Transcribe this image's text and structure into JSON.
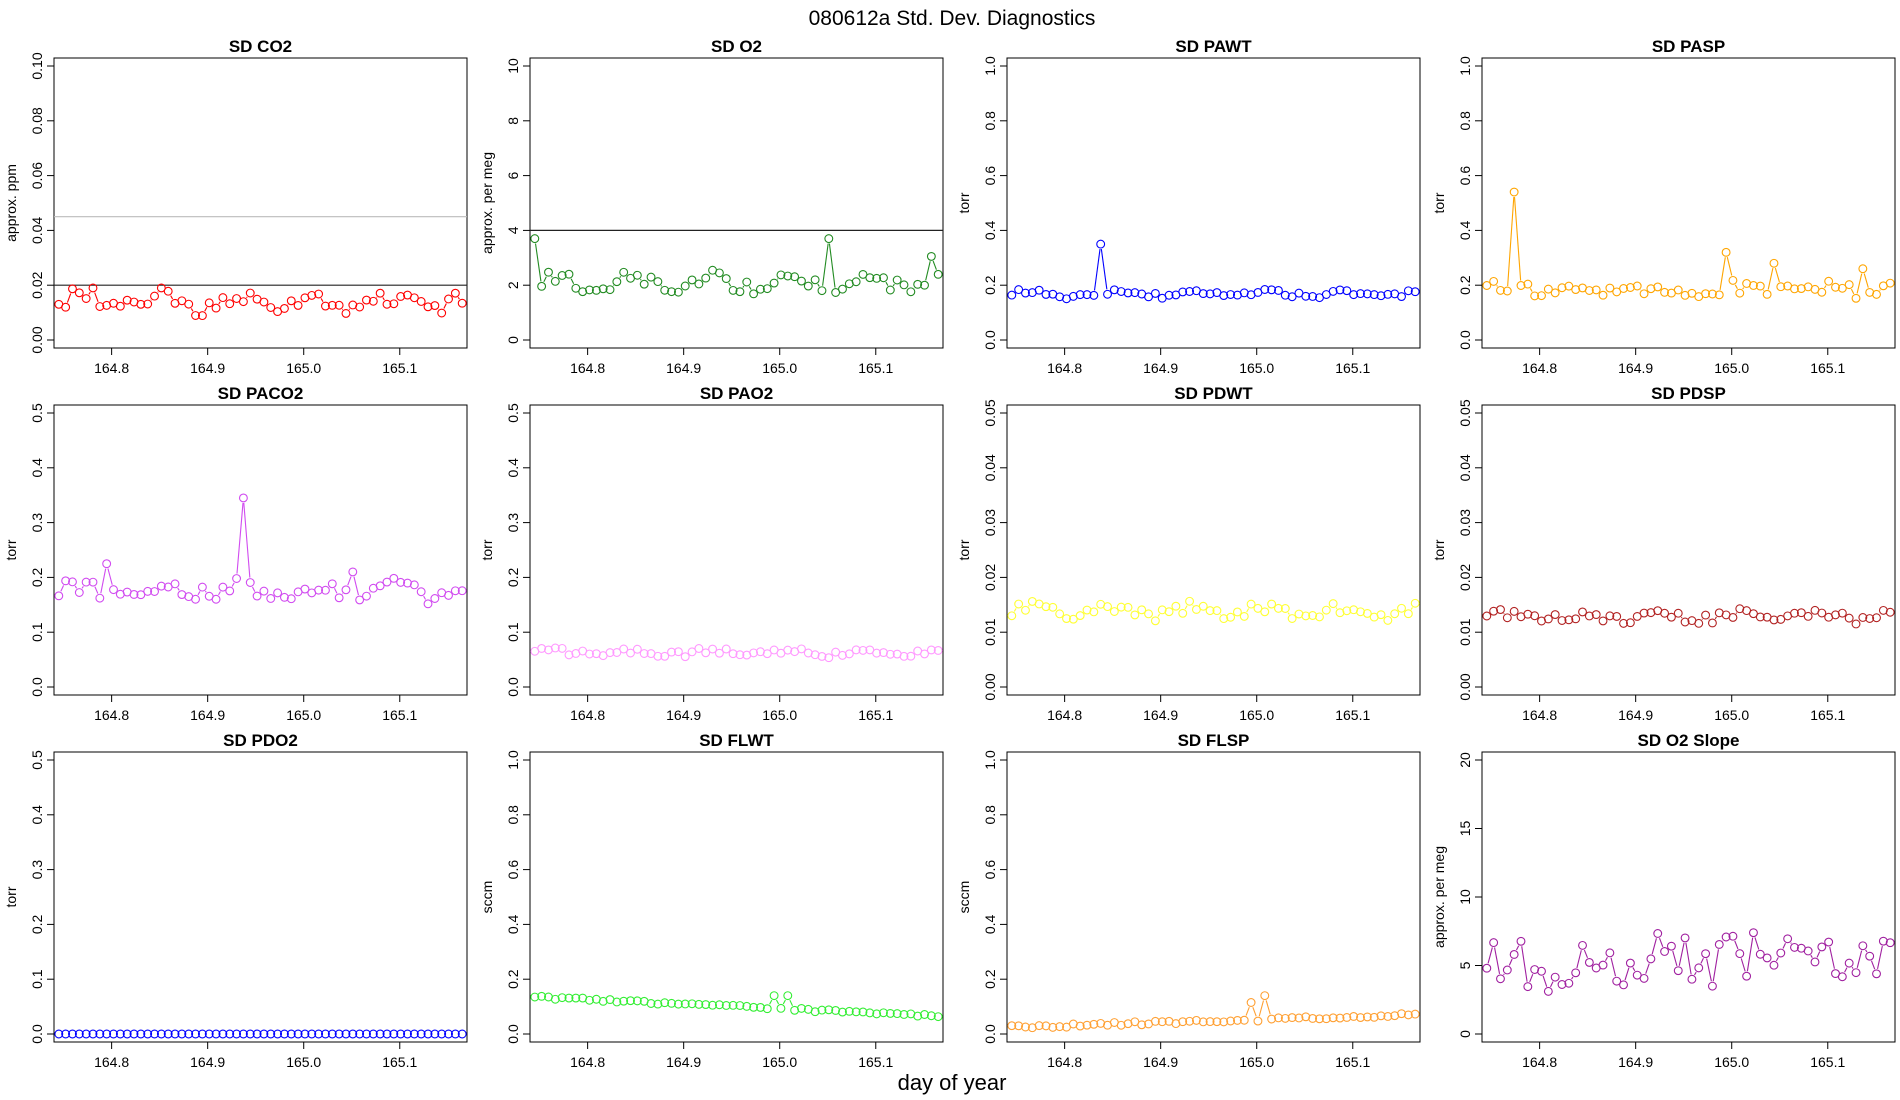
{
  "title": "080612a   Std. Dev. Diagnostics",
  "xlabel": "day of year",
  "chart_data": [
    {
      "type": "scatter",
      "title": "SD CO2",
      "ylabel": "approx. ppm",
      "color": "#ff0000",
      "ylim": [
        0,
        0.1
      ],
      "yticks": [
        "0.00",
        "0.02",
        "0.04",
        "0.06",
        "0.08",
        "0.10"
      ],
      "xlim": [
        164.74,
        165.17
      ],
      "xticks": [
        "164.8",
        "164.9",
        "165.0",
        "165.1"
      ],
      "hlines": [
        {
          "y": 0.02,
          "color": "#222222"
        },
        {
          "y": 0.045,
          "color": "#bbbbbb"
        }
      ],
      "n": 60,
      "base": 0.0135,
      "amp": 0.0025,
      "noise": 0.003,
      "trend": 0,
      "spikes": [
        {
          "x": 164.85,
          "y": 0.019
        },
        {
          "x": 164.78,
          "y": 0.019
        }
      ],
      "seed": 1
    },
    {
      "type": "scatter",
      "title": "SD O2",
      "ylabel": "approx. per meg",
      "color": "#228B22",
      "ylim": [
        0,
        10
      ],
      "yticks": [
        "0",
        "2",
        "4",
        "6",
        "8",
        "10"
      ],
      "xlim": [
        164.74,
        165.17
      ],
      "xticks": [
        "164.8",
        "164.9",
        "165.0",
        "165.1"
      ],
      "hlines": [
        {
          "y": 4,
          "color": "#222222"
        }
      ],
      "n": 60,
      "base": 2.1,
      "amp": 0.2,
      "noise": 0.25,
      "trend": 0,
      "spikes": [
        {
          "x": 164.745,
          "y": 3.7
        },
        {
          "x": 165.05,
          "y": 3.7
        },
        {
          "x": 165.155,
          "y": 3.05
        }
      ],
      "seed": 2
    },
    {
      "type": "scatter",
      "title": "SD PAWT",
      "ylabel": "torr",
      "color": "#0000ff",
      "ylim": [
        0,
        1
      ],
      "yticks": [
        "0.0",
        "0.2",
        "0.4",
        "0.6",
        "0.8",
        "1.0"
      ],
      "xlim": [
        164.74,
        165.17
      ],
      "xticks": [
        "164.8",
        "164.9",
        "165.0",
        "165.1"
      ],
      "hlines": [],
      "n": 60,
      "base": 0.168,
      "amp": 0.008,
      "noise": 0.012,
      "trend": 0,
      "spikes": [
        {
          "x": 164.835,
          "y": 0.35
        }
      ],
      "seed": 3
    },
    {
      "type": "scatter",
      "title": "SD PASP",
      "ylabel": "torr",
      "color": "#FFA500",
      "ylim": [
        0,
        1
      ],
      "yticks": [
        "0.0",
        "0.2",
        "0.4",
        "0.6",
        "0.8",
        "1.0"
      ],
      "xlim": [
        164.74,
        165.17
      ],
      "xticks": [
        "164.8",
        "164.9",
        "165.0",
        "165.1"
      ],
      "hlines": [],
      "n": 60,
      "base": 0.185,
      "amp": 0.01,
      "noise": 0.025,
      "trend": 0,
      "spikes": [
        {
          "x": 164.775,
          "y": 0.54
        },
        {
          "x": 164.995,
          "y": 0.32
        },
        {
          "x": 165.045,
          "y": 0.28
        },
        {
          "x": 165.14,
          "y": 0.26
        }
      ],
      "seed": 4
    },
    {
      "type": "scatter",
      "title": "SD PACO2",
      "ylabel": "torr",
      "color": "#D14BF0",
      "ylim": [
        0,
        0.5
      ],
      "yticks": [
        "0.0",
        "0.1",
        "0.2",
        "0.3",
        "0.4",
        "0.5"
      ],
      "xlim": [
        164.74,
        165.17
      ],
      "xticks": [
        "164.8",
        "164.9",
        "165.0",
        "165.1"
      ],
      "hlines": [],
      "n": 60,
      "base": 0.175,
      "amp": 0.008,
      "noise": 0.016,
      "trend": 0,
      "spikes": [
        {
          "x": 164.937,
          "y": 0.345
        },
        {
          "x": 164.795,
          "y": 0.225
        },
        {
          "x": 165.053,
          "y": 0.21
        }
      ],
      "seed": 5
    },
    {
      "type": "scatter",
      "title": "SD PAO2",
      "ylabel": "torr",
      "color": "#FF99FF",
      "ylim": [
        0,
        0.5
      ],
      "yticks": [
        "0.0",
        "0.1",
        "0.2",
        "0.3",
        "0.4",
        "0.5"
      ],
      "xlim": [
        164.74,
        165.17
      ],
      "xticks": [
        "164.8",
        "164.9",
        "165.0",
        "165.1"
      ],
      "hlines": [],
      "n": 60,
      "base": 0.063,
      "amp": 0.004,
      "noise": 0.006,
      "trend": 0,
      "spikes": [],
      "seed": 6
    },
    {
      "type": "scatter",
      "title": "SD PDWT",
      "ylabel": "torr",
      "color": "#FFFF33",
      "ylim": [
        0,
        0.05
      ],
      "yticks": [
        "0.00",
        "0.01",
        "0.02",
        "0.03",
        "0.04",
        "0.05"
      ],
      "xlim": [
        164.74,
        165.17
      ],
      "xticks": [
        "164.8",
        "164.9",
        "165.0",
        "165.1"
      ],
      "hlines": [],
      "n": 60,
      "base": 0.0138,
      "amp": 0.0008,
      "noise": 0.0011,
      "trend": 0,
      "spikes": [],
      "seed": 7
    },
    {
      "type": "scatter",
      "title": "SD PDSP",
      "ylabel": "torr",
      "color": "#B22222",
      "ylim": [
        0,
        0.05
      ],
      "yticks": [
        "0.00",
        "0.01",
        "0.02",
        "0.03",
        "0.04",
        "0.05"
      ],
      "xlim": [
        164.74,
        165.17
      ],
      "xticks": [
        "164.8",
        "164.9",
        "165.0",
        "165.1"
      ],
      "hlines": [],
      "n": 60,
      "base": 0.0128,
      "amp": 0.0006,
      "noise": 0.0009,
      "trend": 0,
      "spikes": [],
      "seed": 8
    },
    {
      "type": "scatter",
      "title": "SD PDO2",
      "ylabel": "torr",
      "color": "#0000ff",
      "ylim": [
        0,
        0.5
      ],
      "yticks": [
        "0.0",
        "0.1",
        "0.2",
        "0.3",
        "0.4",
        "0.5"
      ],
      "xlim": [
        164.74,
        165.17
      ],
      "xticks": [
        "164.8",
        "164.9",
        "165.0",
        "165.1"
      ],
      "hlines": [],
      "n": 60,
      "base": 0.0,
      "amp": 0,
      "noise": 0,
      "trend": 0,
      "spikes": [],
      "seed": 9
    },
    {
      "type": "scatter",
      "title": "SD FLWT",
      "ylabel": "sccm",
      "color": "#33EE33",
      "ylim": [
        0,
        1
      ],
      "yticks": [
        "0.0",
        "0.2",
        "0.4",
        "0.6",
        "0.8",
        "1.0"
      ],
      "xlim": [
        164.74,
        165.17
      ],
      "xticks": [
        "164.8",
        "164.9",
        "165.0",
        "165.1"
      ],
      "hlines": [],
      "n": 60,
      "base": 0.135,
      "amp": 0,
      "noise": 0.005,
      "trend": -0.07,
      "spikes": [
        {
          "x": 164.997,
          "y": 0.14
        },
        {
          "x": 165.007,
          "y": 0.14
        }
      ],
      "seed": 10
    },
    {
      "type": "scatter",
      "title": "SD FLSP",
      "ylabel": "sccm",
      "color": "#FFA033",
      "ylim": [
        0,
        1
      ],
      "yticks": [
        "0.0",
        "0.2",
        "0.4",
        "0.6",
        "0.8",
        "1.0"
      ],
      "xlim": [
        164.74,
        165.17
      ],
      "xticks": [
        "164.8",
        "164.9",
        "165.0",
        "165.1"
      ],
      "hlines": [],
      "n": 60,
      "base": 0.025,
      "amp": 0,
      "noise": 0.006,
      "trend": 0.045,
      "spikes": [
        {
          "x": 164.997,
          "y": 0.115
        },
        {
          "x": 165.007,
          "y": 0.14
        }
      ],
      "seed": 11
    },
    {
      "type": "scatter",
      "title": "SD O2 Slope",
      "ylabel": "approx. per meg",
      "color": "#A020A0",
      "ylim": [
        0,
        20
      ],
      "yticks": [
        "0",
        "5",
        "10",
        "15",
        "20"
      ],
      "xlim": [
        164.74,
        165.17
      ],
      "xticks": [
        "164.8",
        "164.9",
        "165.0",
        "165.1"
      ],
      "hlines": [],
      "n": 60,
      "base": 5.2,
      "amp": 0.4,
      "noise": 1.9,
      "trend": 0.6,
      "spikes": [],
      "seed": 12
    }
  ]
}
